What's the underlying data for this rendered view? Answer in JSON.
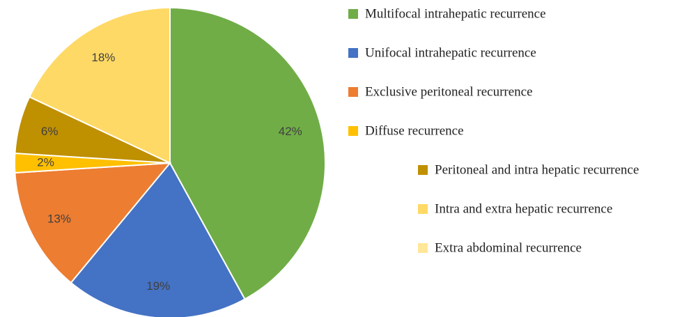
{
  "chart_data": {
    "type": "pie",
    "categories": [
      "Multifocal intrahepatic recurrence",
      "Unifocal intrahepatic recurrence",
      "Exclusive peritoneal recurrence",
      "Diffuse recurrence",
      "Peritoneal and intra hepatic recurrence",
      "Intra and extra hepatic recurrence",
      "Extra abdominal recurrence"
    ],
    "values": [
      42,
      19,
      13,
      2,
      6,
      18,
      null
    ],
    "value_labels": [
      "42%",
      "19%",
      "13%",
      "2%",
      "6%",
      "18%",
      null
    ],
    "colors": [
      "#70ad47",
      "#4472c4",
      "#ed7d31",
      "#ffc000",
      "#bf9000",
      "#ffd966",
      "#ffe699"
    ]
  }
}
